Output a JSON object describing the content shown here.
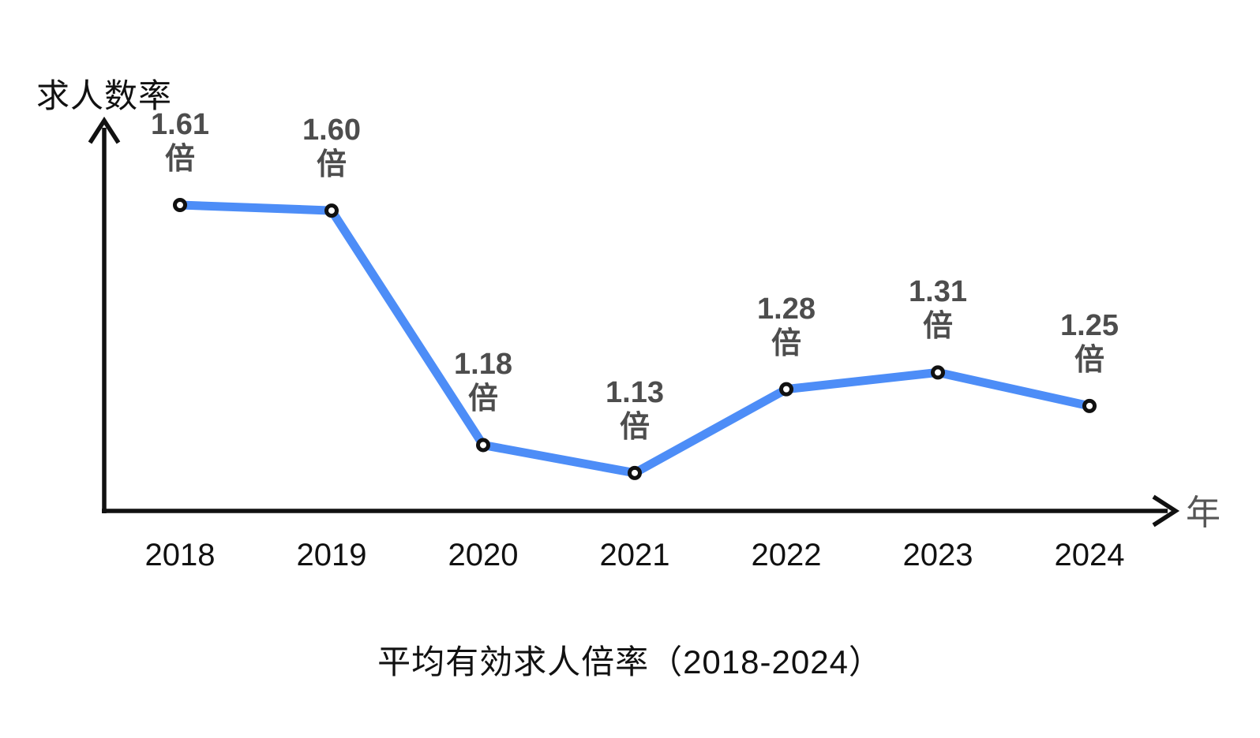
{
  "chart_data": {
    "type": "line",
    "title": "平均有効求人倍率（2018-2024）",
    "ylabel": "求人数率",
    "xlabel": "年",
    "categories": [
      "2018",
      "2019",
      "2020",
      "2021",
      "2022",
      "2023",
      "2024"
    ],
    "values": [
      1.61,
      1.6,
      1.18,
      1.13,
      1.28,
      1.31,
      1.25
    ],
    "point_labels": [
      "1.61",
      "1.60",
      "1.18",
      "1.13",
      "1.28",
      "1.31",
      "1.25"
    ],
    "unit_suffix": "倍",
    "series_name": "有効求人倍率",
    "ylim": [
      1.0,
      1.75
    ],
    "y_axis_ticks": "none",
    "grid": false,
    "legend": "none",
    "colors": {
      "line": "#4D8DF7",
      "marker_fill": "#FFFFFF",
      "marker_stroke": "#111111",
      "point_label": "#4D4D4D",
      "axis": "#111111",
      "tick_label": "#111111",
      "axis_title_x": "#555555",
      "axis_title_y": "#111111",
      "title": "#111111",
      "background": "#FFFFFF"
    }
  }
}
